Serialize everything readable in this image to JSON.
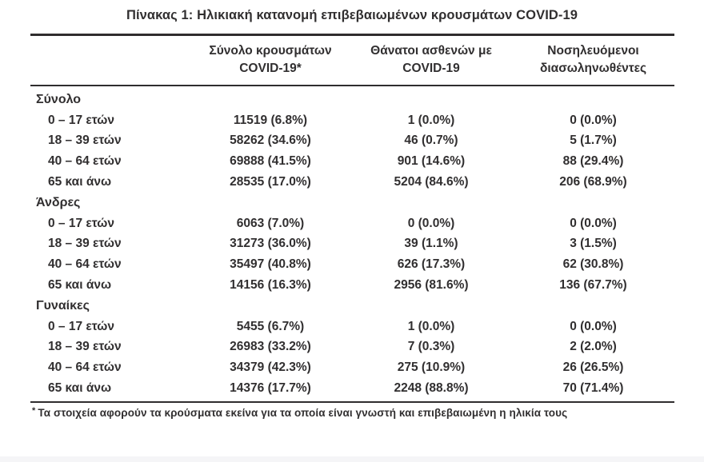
{
  "title": "Πίνακας 1: Ηλικιακή κατανομή επιβεβαιωμένων κρουσμάτων COVID-19",
  "table": {
    "columns": [
      {
        "line1": "Σύνολο κρουσμάτων",
        "line2": "COVID-19*"
      },
      {
        "line1": "Θάνατοι ασθενών με",
        "line2": "COVID-19"
      },
      {
        "line1": "Νοσηλευόμενοι",
        "line2": "διασωληνωθέντες"
      }
    ],
    "sections": [
      {
        "label": "Σύνολο",
        "rows": [
          {
            "age": "0 – 17 ετών",
            "cases": "11519 (6.8%)",
            "deaths": "1 (0.0%)",
            "intubated": "0 (0.0%)"
          },
          {
            "age": "18 – 39 ετών",
            "cases": "58262 (34.6%)",
            "deaths": "46 (0.7%)",
            "intubated": "5 (1.7%)"
          },
          {
            "age": "40 – 64 ετών",
            "cases": "69888 (41.5%)",
            "deaths": "901 (14.6%)",
            "intubated": "88 (29.4%)"
          },
          {
            "age": "65 και άνω",
            "cases": "28535 (17.0%)",
            "deaths": "5204 (84.6%)",
            "intubated": "206 (68.9%)"
          }
        ]
      },
      {
        "label": "Άνδρες",
        "rows": [
          {
            "age": "0 – 17 ετών",
            "cases": "6063 (7.0%)",
            "deaths": "0 (0.0%)",
            "intubated": "0 (0.0%)"
          },
          {
            "age": "18 – 39 ετών",
            "cases": "31273 (36.0%)",
            "deaths": "39 (1.1%)",
            "intubated": "3 (1.5%)"
          },
          {
            "age": "40 – 64 ετών",
            "cases": "35497 (40.8%)",
            "deaths": "626 (17.3%)",
            "intubated": "62 (30.8%)"
          },
          {
            "age": "65 και άνω",
            "cases": "14156 (16.3%)",
            "deaths": "2956 (81.6%)",
            "intubated": "136 (67.7%)"
          }
        ]
      },
      {
        "label": "Γυναίκες",
        "rows": [
          {
            "age": "0 – 17 ετών",
            "cases": "5455 (6.7%)",
            "deaths": "1 (0.0%)",
            "intubated": "0 (0.0%)"
          },
          {
            "age": "18 – 39 ετών",
            "cases": "26983 (33.2%)",
            "deaths": "7 (0.3%)",
            "intubated": "2 (2.0%)"
          },
          {
            "age": "40 – 64 ετών",
            "cases": "34379 (42.3%)",
            "deaths": "275 (10.9%)",
            "intubated": "26 (26.5%)"
          },
          {
            "age": "65 και άνω",
            "cases": "14376 (17.7%)",
            "deaths": "2248 (88.8%)",
            "intubated": "70 (71.4%)"
          }
        ]
      }
    ]
  },
  "footnote": {
    "marker": "*",
    "text": "Τα στοιχεία αφορούν τα κρούσματα εκείνα για τα οποία είναι γνωστή και επιβεβαιωμένη η ηλικία τους"
  },
  "colors": {
    "text": "#312f30",
    "rule": "#2f2d2e",
    "background": "#ffffff"
  }
}
